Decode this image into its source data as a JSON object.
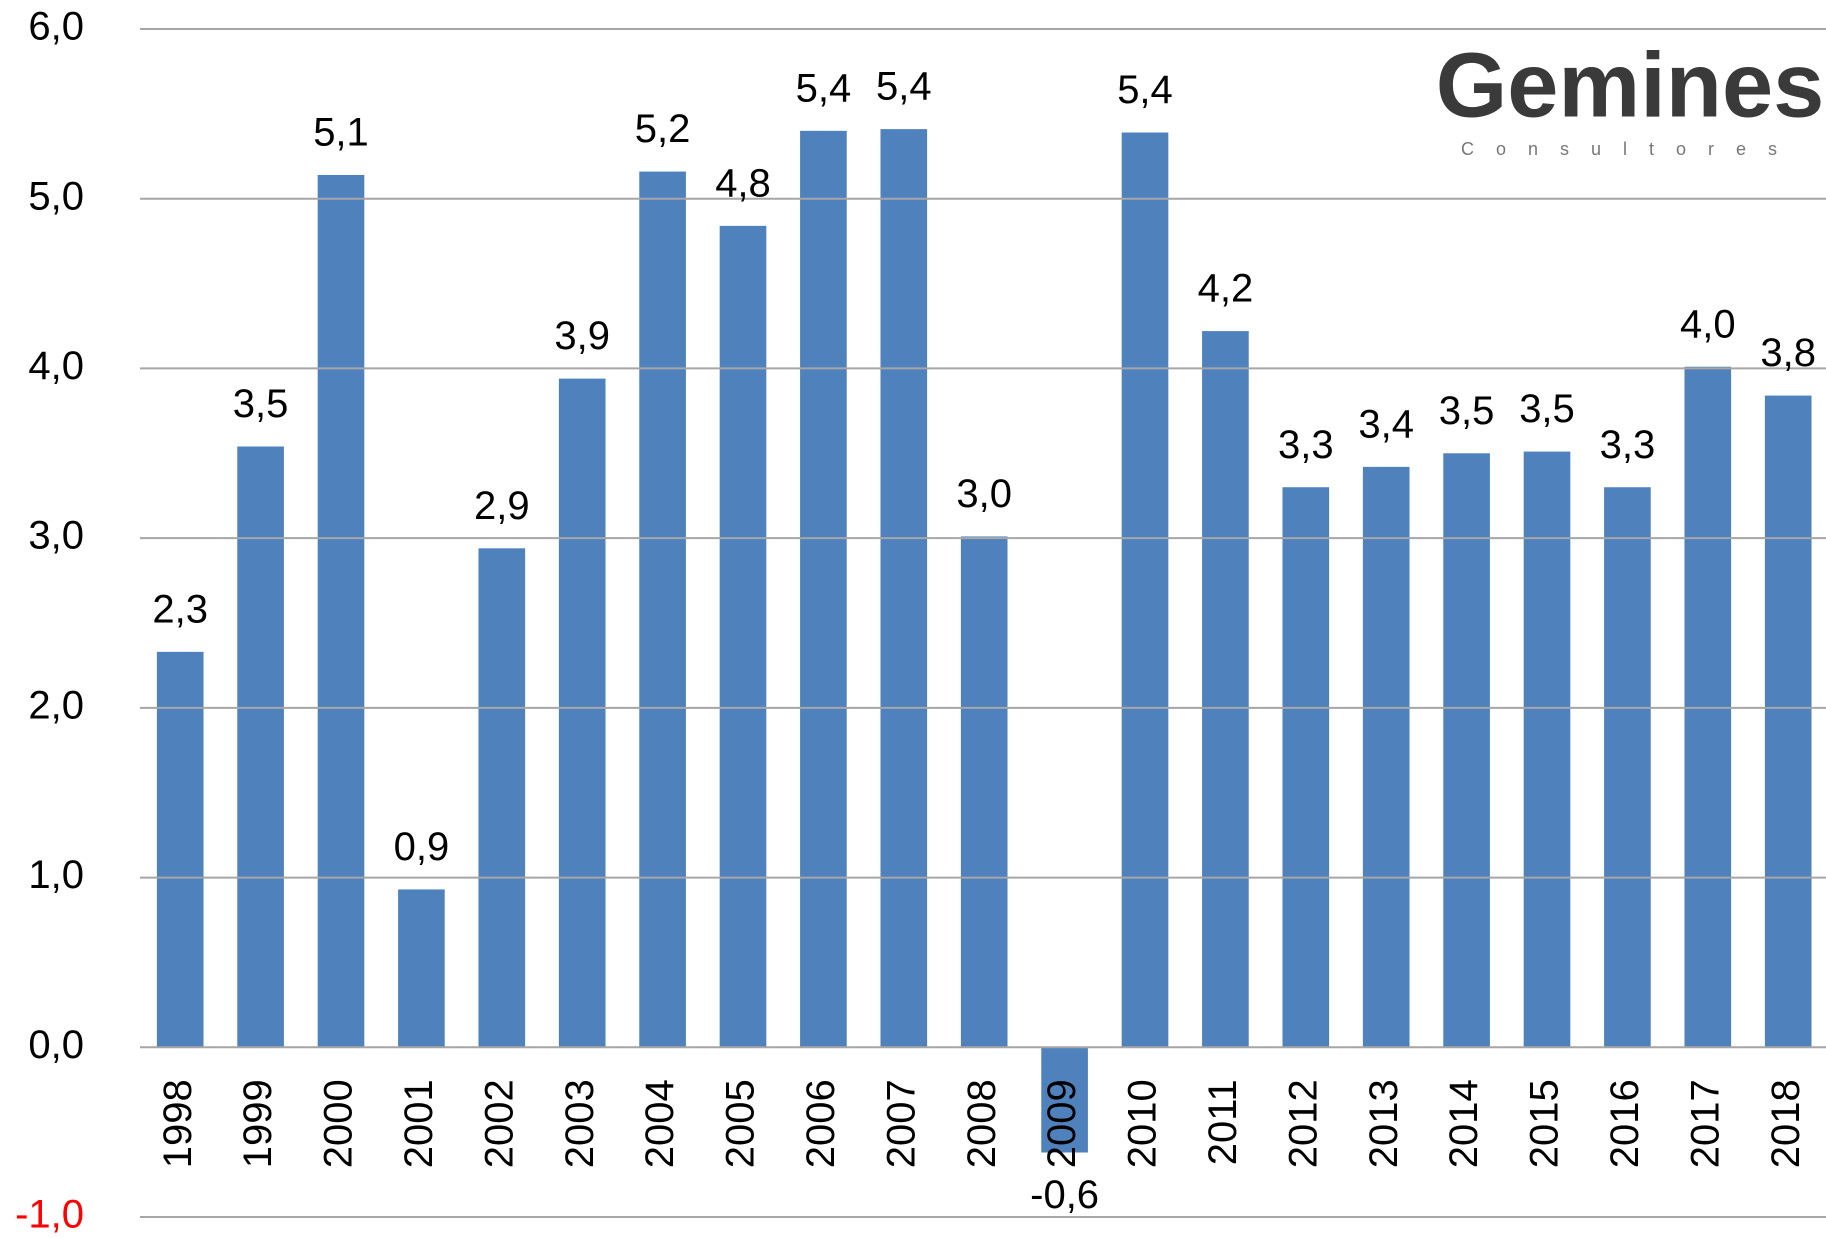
{
  "chart_data": {
    "type": "bar",
    "categories": [
      "1998",
      "1999",
      "2000",
      "2001",
      "2002",
      "2003",
      "2004",
      "2005",
      "2006",
      "2007",
      "2008",
      "2009",
      "2010",
      "2011",
      "2012",
      "2013",
      "2014",
      "2015",
      "2016",
      "2017",
      "2018"
    ],
    "values": [
      2.33,
      3.54,
      5.14,
      0.93,
      2.94,
      3.94,
      5.16,
      4.84,
      5.4,
      5.41,
      3.01,
      -0.62,
      5.39,
      4.22,
      3.3,
      3.42,
      3.5,
      3.51,
      3.3,
      4.01,
      3.84
    ],
    "value_labels": [
      "2,3",
      "3,5",
      "5,1",
      "0,9",
      "2,9",
      "3,9",
      "5,2",
      "4,8",
      "5,4",
      "5,4",
      "3,0",
      "-0,6",
      "5,4",
      "4,2",
      "3,3",
      "3,4",
      "3,5",
      "3,5",
      "3,3",
      "4,0",
      "3,8"
    ],
    "color": "#4f81bd",
    "ylim": [
      -1,
      6
    ],
    "yticks": [
      {
        "value": -1,
        "label": "-1,0"
      },
      {
        "value": 0,
        "label": "0,0"
      },
      {
        "value": 1,
        "label": "1,0"
      },
      {
        "value": 2,
        "label": "2,0"
      },
      {
        "value": 3,
        "label": "3,0"
      },
      {
        "value": 4,
        "label": "4,0"
      },
      {
        "value": 5,
        "label": "5,0"
      },
      {
        "value": 6,
        "label": "6,0"
      }
    ],
    "grid": true,
    "logo": {
      "name": "Gemines",
      "subtitle": "Consultores"
    }
  }
}
